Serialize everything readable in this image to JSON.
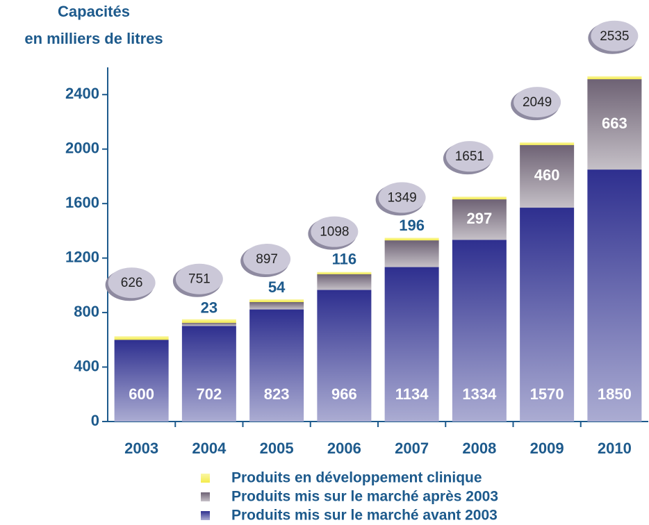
{
  "chart_data": {
    "type": "stacked_bar",
    "y_label_lines": [
      "Capacités",
      "en milliers de litres"
    ],
    "categories": [
      "2003",
      "2004",
      "2005",
      "2006",
      "2007",
      "2008",
      "2009",
      "2010"
    ],
    "series": [
      {
        "name": "Produits mis sur le marché avant 2003",
        "color": "#2e2f8f",
        "values": [
          600,
          702,
          823,
          966,
          1134,
          1334,
          1570,
          1850
        ],
        "show_values": true
      },
      {
        "name": "Produits mis sur le marché après 2003",
        "color": "#6e6274",
        "values": [
          0,
          23,
          54,
          116,
          196,
          297,
          460,
          663
        ],
        "show_values": true
      },
      {
        "name": "Produits en développement clinique",
        "color": "#f4ec4a",
        "values": [
          26,
          26,
          20,
          16,
          19,
          20,
          19,
          22
        ],
        "show_values": false
      }
    ],
    "totals": [
      626,
      751,
      897,
      1098,
      1349,
      1651,
      2049,
      2535
    ],
    "ylim": [
      0,
      2600
    ],
    "yticks": [
      0,
      400,
      800,
      1200,
      1600,
      2000,
      2400
    ]
  }
}
